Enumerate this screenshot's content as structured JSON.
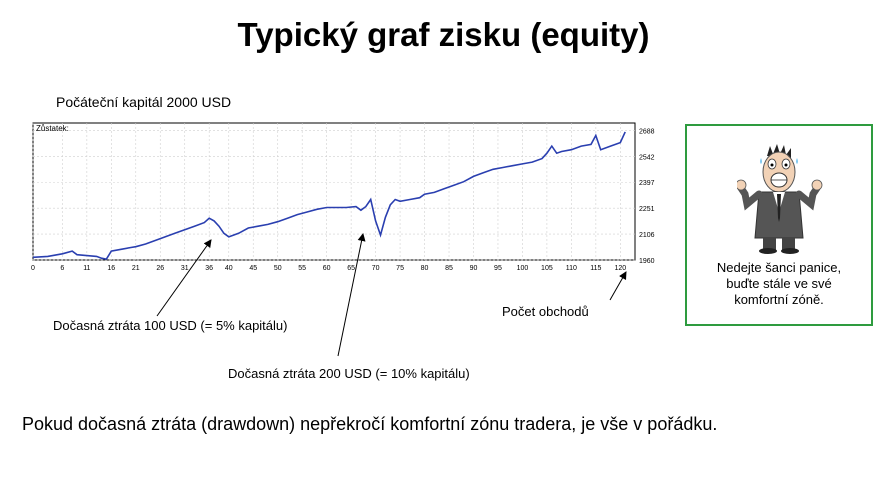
{
  "title": "Typický graf zisku (equity)",
  "initial_capital": "Počáteční kapitál 2000 USD",
  "chart_data": {
    "type": "line",
    "legend_label": "Zůstatek:",
    "xlabel": "Počet obchodů",
    "xlim": [
      0,
      123
    ],
    "ylim": [
      1960,
      2730
    ],
    "x_ticks": [
      0,
      6,
      11,
      16,
      21,
      26,
      31,
      36,
      40,
      45,
      50,
      55,
      60,
      65,
      70,
      75,
      80,
      85,
      90,
      95,
      100,
      105,
      110,
      115,
      120
    ],
    "y_ticks": [
      1960,
      2106,
      2251,
      2397,
      2542,
      2688
    ],
    "grid": true,
    "series": [
      {
        "color": "#2a3fb0",
        "x": [
          0,
          3,
          6,
          8,
          9,
          11,
          13,
          14,
          15,
          16,
          18,
          20,
          21,
          23,
          26,
          29,
          31,
          33,
          35,
          36,
          37,
          38,
          39,
          40,
          42,
          44,
          46,
          48,
          50,
          52,
          54,
          56,
          58,
          60,
          62,
          64,
          66,
          67,
          68,
          69,
          70,
          71,
          72,
          73,
          74,
          75,
          77,
          79,
          80,
          82,
          84,
          86,
          88,
          90,
          92,
          94,
          96,
          98,
          100,
          102,
          104,
          105,
          106,
          107,
          108,
          110,
          112,
          114,
          115,
          116,
          118,
          120,
          121
        ],
        "y": [
          1975,
          1980,
          1995,
          2010,
          1990,
          1985,
          1980,
          1970,
          1965,
          2010,
          2020,
          2030,
          2035,
          2050,
          2080,
          2110,
          2130,
          2150,
          2170,
          2195,
          2180,
          2150,
          2110,
          2090,
          2110,
          2140,
          2150,
          2160,
          2175,
          2195,
          2215,
          2230,
          2245,
          2255,
          2255,
          2255,
          2260,
          2240,
          2260,
          2300,
          2180,
          2100,
          2200,
          2270,
          2300,
          2290,
          2300,
          2310,
          2330,
          2340,
          2360,
          2380,
          2400,
          2430,
          2450,
          2470,
          2480,
          2490,
          2500,
          2510,
          2530,
          2560,
          2600,
          2560,
          2570,
          2580,
          2600,
          2610,
          2660,
          2580,
          2600,
          2620,
          2680
        ]
      }
    ]
  },
  "annotations": {
    "drawdown_small": "Dočasná ztráta 100 USD (= 5% kapitálu)",
    "drawdown_large": "Dočasná ztráta 200 USD (= 10% kapitálu)",
    "trades_count": "Počet obchodů"
  },
  "panic_note": "Nedejte šanci panice,\nbuďte stále ve své\nkomfortní zóně.",
  "bottom_text": "Pokud dočasná ztráta (drawdown) nepřekročí komfortní zónu tradera, je vše v pořádku."
}
